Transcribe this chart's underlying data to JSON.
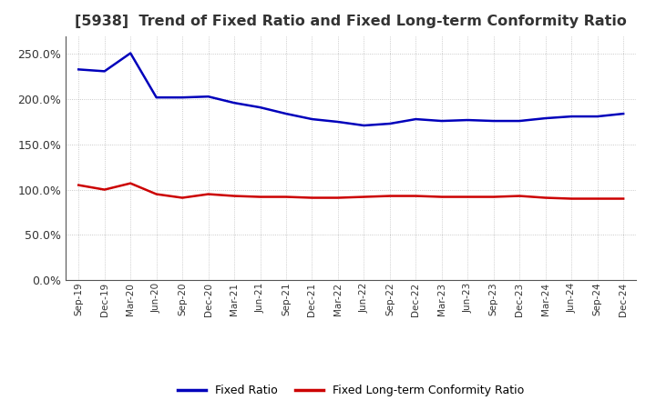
{
  "title": "[5938]  Trend of Fixed Ratio and Fixed Long-term Conformity Ratio",
  "x_labels": [
    "Sep-19",
    "Dec-19",
    "Mar-20",
    "Jun-20",
    "Sep-20",
    "Dec-20",
    "Mar-21",
    "Jun-21",
    "Sep-21",
    "Dec-21",
    "Mar-22",
    "Jun-22",
    "Sep-22",
    "Dec-22",
    "Mar-23",
    "Jun-23",
    "Sep-23",
    "Dec-23",
    "Mar-24",
    "Jun-24",
    "Sep-24",
    "Dec-24"
  ],
  "fixed_ratio": [
    233,
    231,
    251,
    202,
    202,
    203,
    196,
    191,
    184,
    178,
    175,
    171,
    173,
    178,
    176,
    177,
    176,
    176,
    179,
    181,
    181,
    184
  ],
  "fixed_lt_ratio": [
    105,
    100,
    107,
    95,
    91,
    95,
    93,
    92,
    92,
    91,
    91,
    92,
    93,
    93,
    92,
    92,
    92,
    93,
    91,
    90,
    90,
    90
  ],
  "fixed_ratio_color": "#0000BB",
  "fixed_lt_ratio_color": "#CC0000",
  "figure_bg_color": "#FFFFFF",
  "plot_bg_color": "#FFFFFF",
  "ylim": [
    0,
    270
  ],
  "yticks": [
    0,
    50,
    100,
    150,
    200,
    250
  ],
  "grid_color": "#AAAAAA",
  "title_color": "#333333",
  "tick_color": "#333333",
  "legend_labels": [
    "Fixed Ratio",
    "Fixed Long-term Conformity Ratio"
  ],
  "line_width": 1.8
}
